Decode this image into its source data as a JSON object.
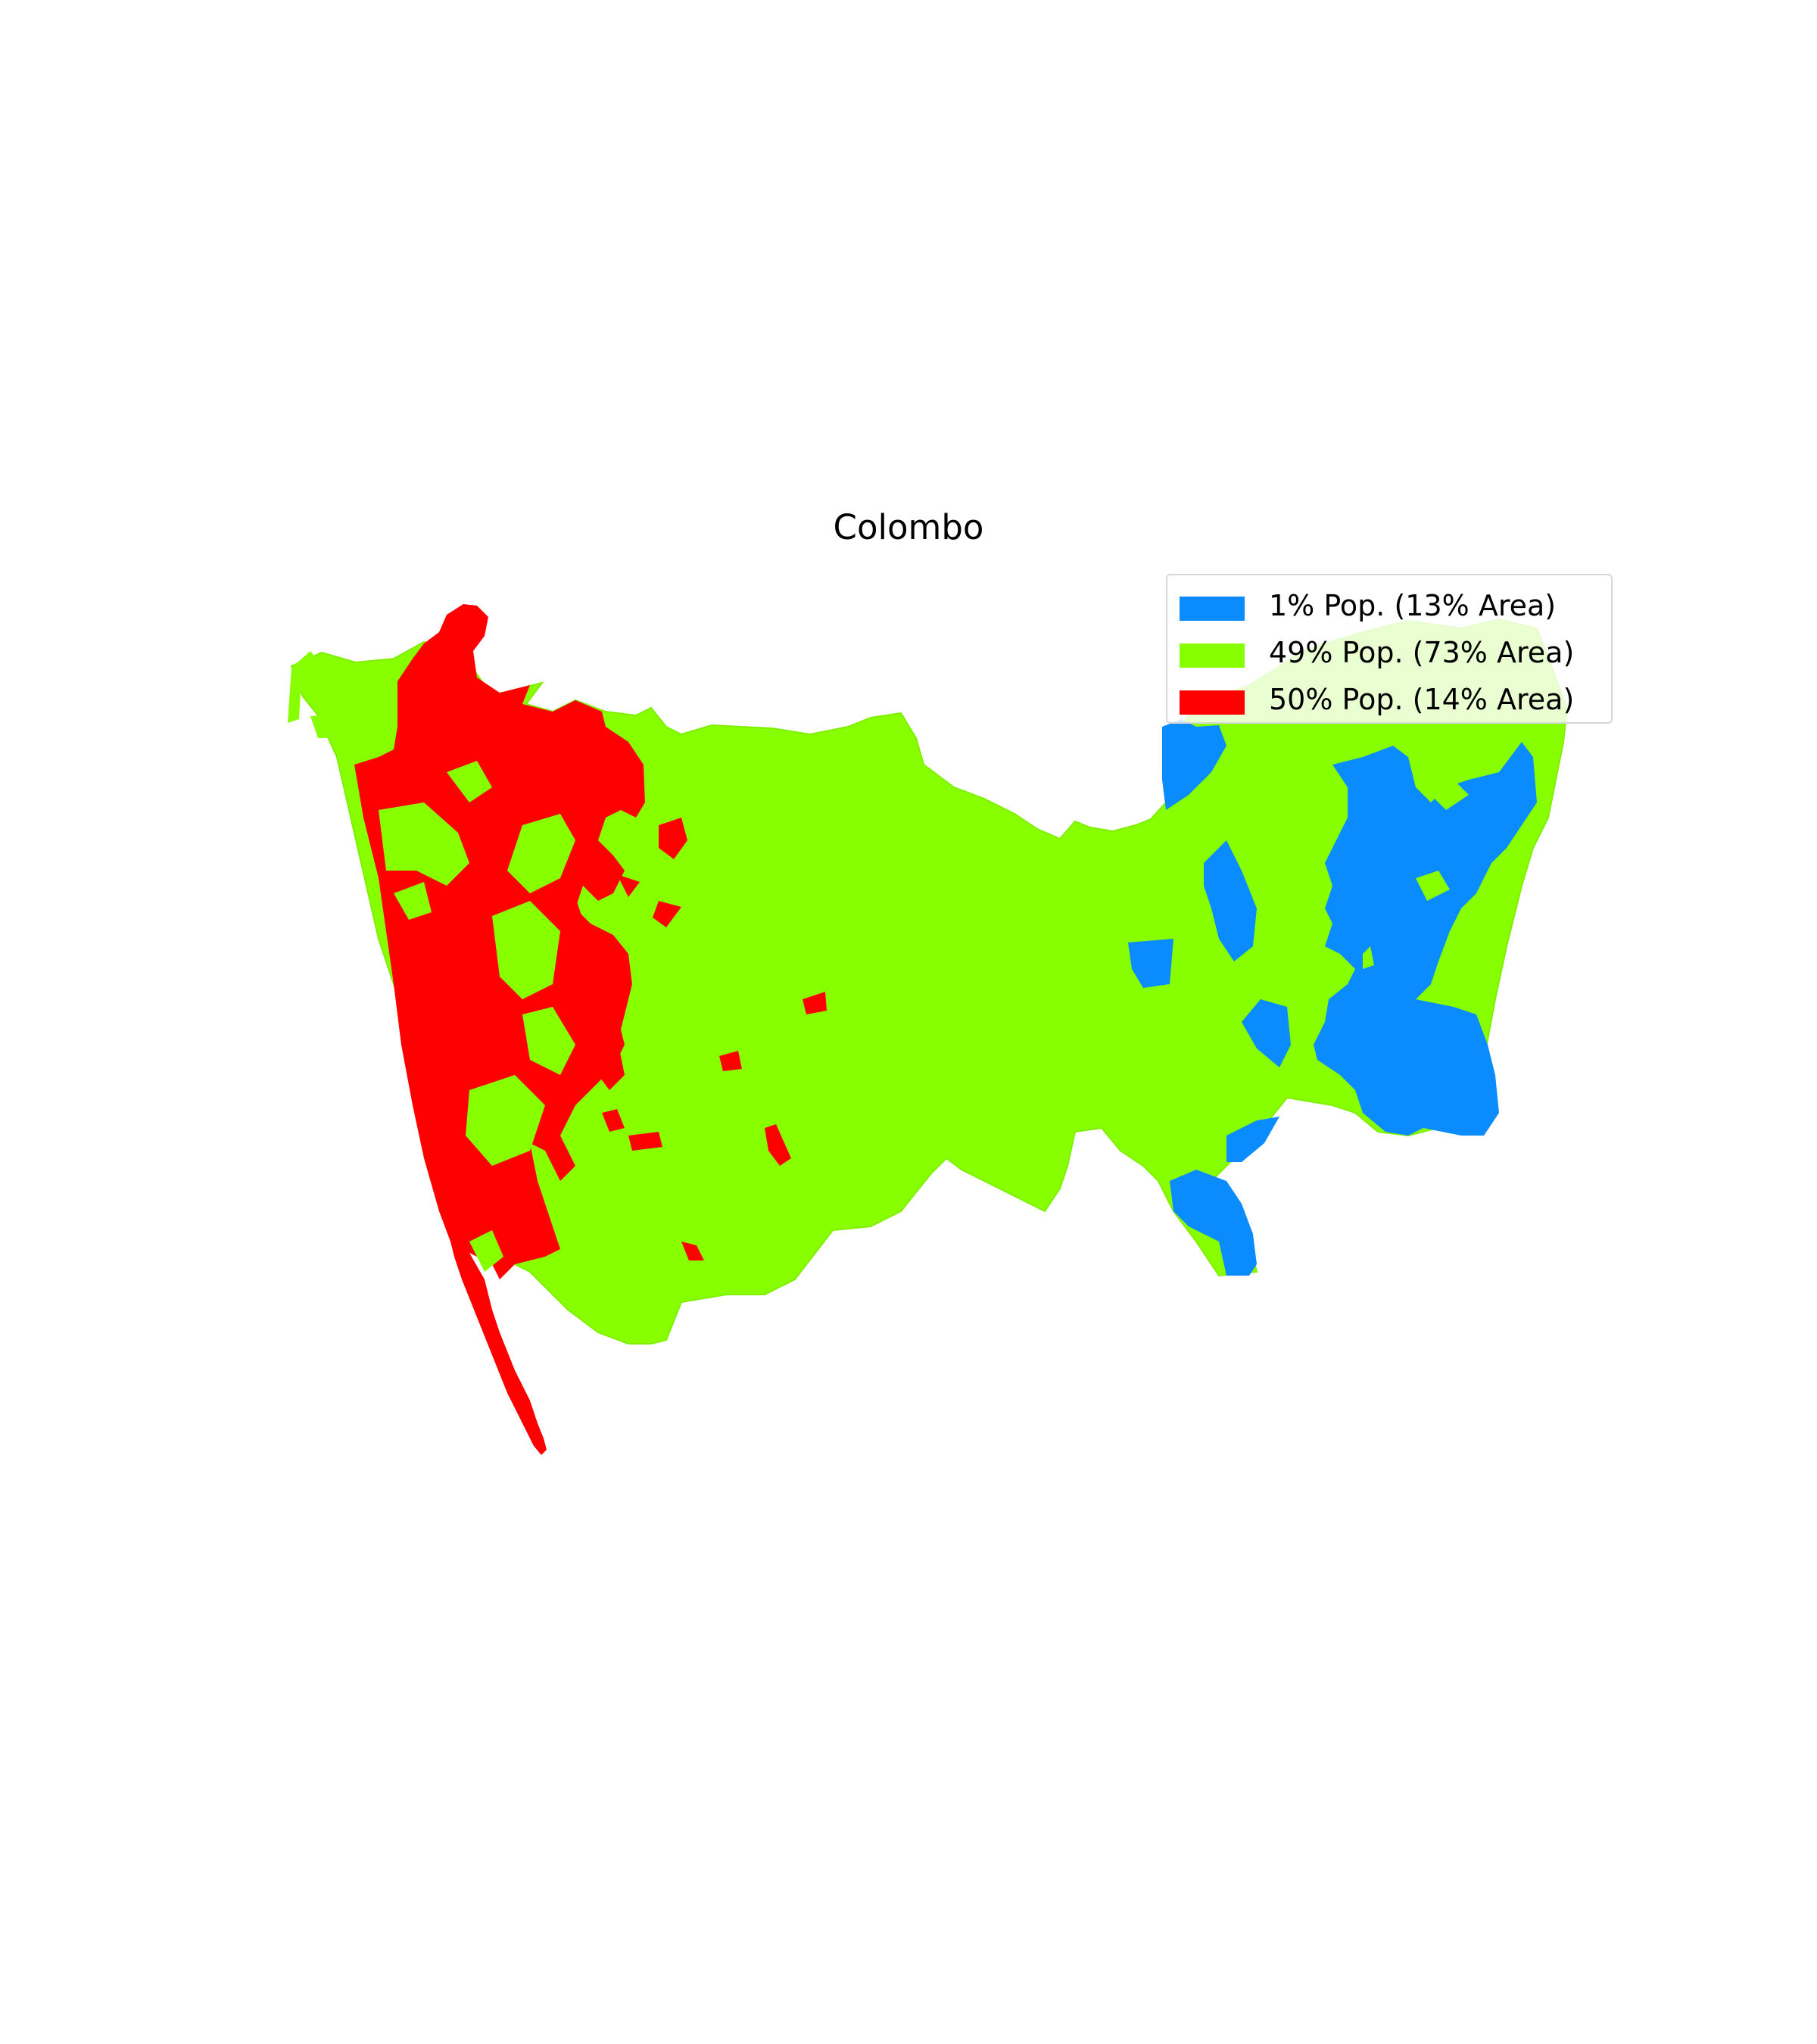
{
  "title": "Colombo",
  "colors": {
    "low": "#0a8cff",
    "mid": "#88ff00",
    "high": "#ff0000"
  },
  "legend": [
    {
      "label": "1% Pop. (13% Area)",
      "color": "#0a8cff"
    },
    {
      "label": "49% Pop. (73% Area)",
      "color": "#88ff00"
    },
    {
      "label": "50% Pop. (14% Area)",
      "color": "#ff0000"
    }
  ]
}
